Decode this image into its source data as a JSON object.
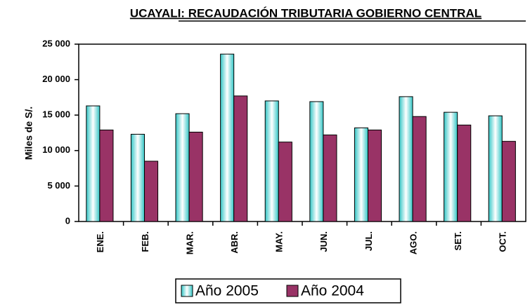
{
  "chart_data": {
    "type": "bar",
    "title": "UCAYALI: RECAUDACIÓN TRIBUTARIA GOBIERNO CENTRAL",
    "y_label": "Miles de S/.",
    "categories": [
      "ENE.",
      "FEB.",
      "MAR.",
      "ABR.",
      "MAY.",
      "JUN.",
      "JUL.",
      "AGO.",
      "SET.",
      "OCT."
    ],
    "series": [
      {
        "name": "Año 2005",
        "color": "#33c6c6",
        "values": [
          16300,
          12300,
          15200,
          23600,
          17000,
          16900,
          13200,
          17600,
          15400,
          14900
        ]
      },
      {
        "name": "Año 2004",
        "color": "#993366",
        "values": [
          12900,
          8500,
          12600,
          17700,
          11200,
          12200,
          12900,
          14800,
          13600,
          11300
        ]
      }
    ],
    "ylim": [
      0,
      25000
    ],
    "yticks": [
      0,
      {
        "value": 5000,
        "label": "5 000"
      },
      {
        "value": 10000,
        "label": "10 000"
      },
      {
        "value": 15000,
        "label": "15 000"
      },
      {
        "value": 20000,
        "label": "20 000"
      },
      {
        "value": 25000,
        "label": "25 000"
      }
    ],
    "legend": "bottom"
  }
}
